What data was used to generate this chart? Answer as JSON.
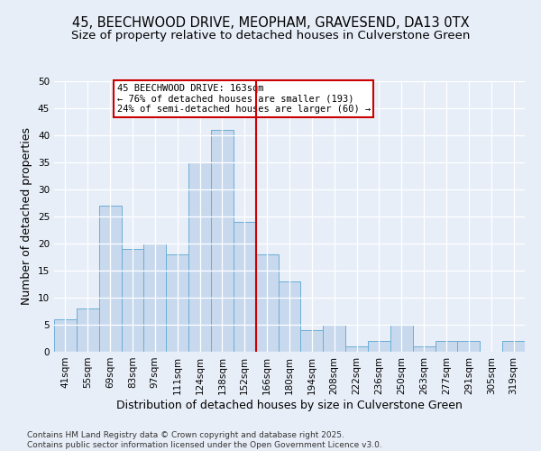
{
  "title_line1": "45, BEECHWOOD DRIVE, MEOPHAM, GRAVESEND, DA13 0TX",
  "title_line2": "Size of property relative to detached houses in Culverstone Green",
  "xlabel": "Distribution of detached houses by size in Culverstone Green",
  "ylabel": "Number of detached properties",
  "footer": "Contains HM Land Registry data © Crown copyright and database right 2025.\nContains public sector information licensed under the Open Government Licence v3.0.",
  "bin_labels": [
    "41sqm",
    "55sqm",
    "69sqm",
    "83sqm",
    "97sqm",
    "111sqm",
    "124sqm",
    "138sqm",
    "152sqm",
    "166sqm",
    "180sqm",
    "194sqm",
    "208sqm",
    "222sqm",
    "236sqm",
    "250sqm",
    "263sqm",
    "277sqm",
    "291sqm",
    "305sqm",
    "319sqm"
  ],
  "bar_values": [
    6,
    8,
    27,
    19,
    20,
    18,
    35,
    41,
    24,
    18,
    13,
    4,
    5,
    1,
    2,
    5,
    1,
    2,
    2,
    0,
    2
  ],
  "bar_color": "#c8d9ee",
  "bar_edge_color": "#6aaed6",
  "vline_color": "#cc0000",
  "annotation_text": "45 BEECHWOOD DRIVE: 163sqm\n← 76% of detached houses are smaller (193)\n24% of semi-detached houses are larger (60) →",
  "annotation_box_color": "#cc0000",
  "ylim": [
    0,
    50
  ],
  "yticks": [
    0,
    5,
    10,
    15,
    20,
    25,
    30,
    35,
    40,
    45,
    50
  ],
  "bg_color": "#e8eef8",
  "plot_bg_color": "#e8eef8",
  "title_fontsize": 10.5,
  "subtitle_fontsize": 9.5,
  "axis_label_fontsize": 9,
  "tick_fontsize": 7.5,
  "footer_fontsize": 6.5
}
